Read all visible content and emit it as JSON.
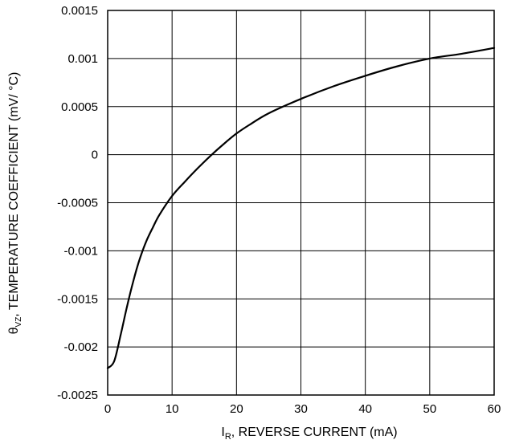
{
  "chart_data": {
    "type": "line",
    "title": "",
    "xlabel": {
      "symbol": "I",
      "subscript": "R",
      "text": ", REVERSE CURRENT (mA)"
    },
    "ylabel": {
      "symbol": "θ",
      "subscript": "VZ",
      "text": ", TEMPERATURE COEFFICIENT (mV/ °C)"
    },
    "xlim": [
      0,
      60
    ],
    "ylim": [
      -0.0025,
      0.0015
    ],
    "x_ticks": [
      {
        "value": 0,
        "label": "0"
      },
      {
        "value": 10,
        "label": "10"
      },
      {
        "value": 20,
        "label": "20"
      },
      {
        "value": 30,
        "label": "30"
      },
      {
        "value": 40,
        "label": "40"
      },
      {
        "value": 50,
        "label": "50"
      },
      {
        "value": 60,
        "label": "60"
      }
    ],
    "y_ticks": [
      {
        "value": 0.0015,
        "label": "0.0015"
      },
      {
        "value": 0.001,
        "label": "0.001"
      },
      {
        "value": 0.0005,
        "label": "0.0005"
      },
      {
        "value": 0,
        "label": "0"
      },
      {
        "value": -0.0005,
        "label": "-0.0005"
      },
      {
        "value": -0.001,
        "label": "-0.001"
      },
      {
        "value": -0.0015,
        "label": "-0.0015"
      },
      {
        "value": -0.002,
        "label": "-0.002"
      },
      {
        "value": -0.0025,
        "label": "-0.0025"
      }
    ],
    "grid": true,
    "series": [
      {
        "color": "#000000",
        "x": [
          0,
          1,
          2,
          3,
          4,
          5,
          6,
          7,
          8,
          10,
          12,
          14,
          16,
          18,
          20,
          22,
          25,
          30,
          35,
          40,
          45,
          50,
          55,
          60
        ],
        "y": [
          -0.00222,
          -0.00215,
          -0.00188,
          -0.00158,
          -0.00131,
          -0.00108,
          -0.0009,
          -0.00076,
          -0.00063,
          -0.00043,
          -0.00028,
          -0.00014,
          -1e-05,
          0.00011,
          0.00022,
          0.00031,
          0.00043,
          0.00058,
          0.00071,
          0.00082,
          0.00092,
          0.001,
          0.00105,
          0.00111
        ]
      }
    ]
  }
}
